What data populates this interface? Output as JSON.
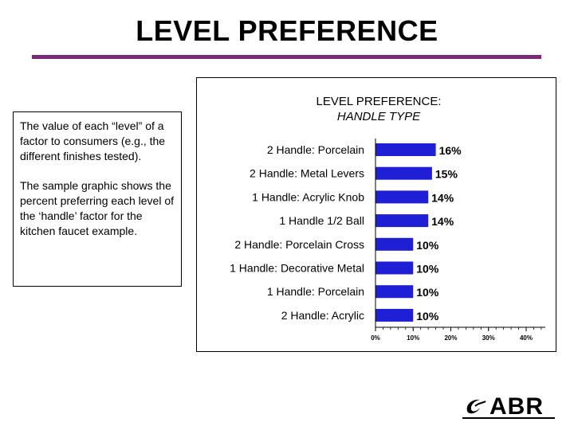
{
  "page": {
    "title": "LEVEL PREFERENCE"
  },
  "textbox": {
    "paragraph1": "The value of each “level” of a factor to consumers (e.g., the different finishes tested).",
    "paragraph2": "The sample graphic shows the percent preferring each level of the ‘handle’ factor for the kitchen faucet example."
  },
  "logo": {
    "text": "ABR",
    "icon": "swoosh-logo-icon"
  },
  "colors": {
    "bar": "#1f1fd6",
    "title_rule": "#7a2a7a"
  },
  "chart_data": {
    "type": "bar",
    "orientation": "horizontal",
    "title": "LEVEL PREFERENCE:",
    "subtitle": "HANDLE TYPE",
    "categories": [
      "2 Handle:  Porcelain",
      "2 Handle:  Metal Levers",
      "1 Handle:  Acrylic Knob",
      "1 Handle 1/2 Ball",
      "2 Handle: Porcelain Cross",
      "1 Handle: Decorative Metal",
      "1 Handle: Porcelain",
      "2 Handle: Acrylic"
    ],
    "values": [
      16,
      15,
      14,
      14,
      10,
      10,
      10,
      10
    ],
    "data_labels": [
      "16%",
      "15%",
      "14%",
      "14%",
      "10%",
      "10%",
      "10%",
      "10%"
    ],
    "xlim": [
      0,
      40
    ],
    "x_ticks": [
      0,
      10,
      20,
      30,
      40
    ],
    "x_tick_labels": [
      "0%",
      "10%",
      "20%",
      "30%",
      "40%"
    ],
    "grid": false
  }
}
